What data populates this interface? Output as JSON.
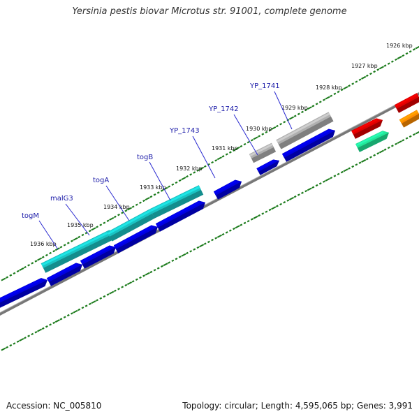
{
  "title": "Yersinia pestis biovar Microtus str. 91001, complete genome",
  "footer": {
    "accession_label": "Accession:",
    "accession": "NC_005810",
    "topology_label": "Topology:",
    "topology": "circular",
    "length_label": "Length:",
    "length": "4,595,065 bp",
    "genes_label": "Genes:",
    "genes": "3,991"
  },
  "kbp_ticks": [
    {
      "kbp": 1926,
      "label": "1926 kbp"
    },
    {
      "kbp": 1927,
      "label": "1927 kbp"
    },
    {
      "kbp": 1928,
      "label": "1928 kbp"
    },
    {
      "kbp": 1929,
      "label": "1929 kbp"
    },
    {
      "kbp": 1930,
      "label": "1930 kbp"
    },
    {
      "kbp": 1931,
      "label": "1931 kbp"
    },
    {
      "kbp": 1932,
      "label": "1932 kbp"
    },
    {
      "kbp": 1933,
      "label": "1933 kbp"
    },
    {
      "kbp": 1934,
      "label": "1934 kbp"
    },
    {
      "kbp": 1935,
      "label": "1935 kbp"
    },
    {
      "kbp": 1936,
      "label": "1936 kbp"
    }
  ],
  "gene_labels": [
    {
      "name": "togM"
    },
    {
      "name": "malG3"
    },
    {
      "name": "togA"
    },
    {
      "name": "togB"
    },
    {
      "name": "YP_1743"
    },
    {
      "name": "YP_1742"
    },
    {
      "name": "YP_1741"
    }
  ],
  "colors": {
    "cds": "#0000e0",
    "gene_teal": "#1ac4c4",
    "gene_gray": "#b0b0b0",
    "gene_red": "#e00000",
    "gene_mint": "#22e899",
    "gene_orange": "#ff8c00",
    "backbone": "#777777",
    "ticks": "#1a7a1a"
  }
}
